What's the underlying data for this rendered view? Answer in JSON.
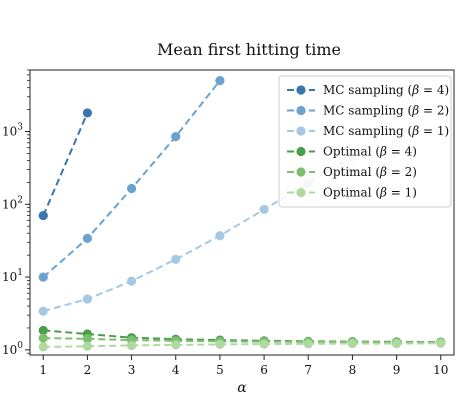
{
  "chart_data": {
    "type": "line",
    "title": "Mean first hitting time",
    "xlabel": "α",
    "ylabel": "",
    "x": [
      1,
      2,
      3,
      4,
      5,
      6,
      7,
      8,
      9,
      10
    ],
    "xlim": [
      0.7,
      10.3
    ],
    "ylim": [
      0.85,
      7000
    ],
    "yscale": "log",
    "y_ticks": [
      1,
      10,
      100,
      1000
    ],
    "y_tick_labels": [
      "10",
      "10",
      "10",
      "10"
    ],
    "y_tick_exponents": [
      "0",
      "1",
      "2",
      "3"
    ],
    "x_tick_labels": [
      "1",
      "2",
      "3",
      "4",
      "5",
      "6",
      "7",
      "8",
      "9",
      "10"
    ],
    "legend_position": "top-right",
    "grid": false,
    "series": [
      {
        "name": "MC sampling (β = 4)",
        "label_prefix": "MC sampling (",
        "beta": "β",
        "label_suffix": " = 4)",
        "color": "#3b75af",
        "x": [
          1,
          2
        ],
        "values": [
          70,
          1800
        ]
      },
      {
        "name": "MC sampling (β = 2)",
        "label_prefix": "MC sampling (",
        "beta": "β",
        "label_suffix": " = 2)",
        "color": "#6aa3cf",
        "x": [
          1,
          2,
          3,
          4,
          5
        ],
        "values": [
          10,
          34,
          165,
          850,
          5000
        ]
      },
      {
        "name": "MC sampling (β = 1)",
        "label_prefix": "MC sampling (",
        "beta": "β",
        "label_suffix": " = 1)",
        "color": "#a6c8e2",
        "x": [
          1,
          2,
          3,
          4,
          5,
          6,
          7,
          8
        ],
        "values": [
          3.4,
          5.0,
          8.8,
          17.5,
          37,
          85,
          195,
          450
        ]
      },
      {
        "name": "Optimal (β = 4)",
        "label_prefix": "Optimal (",
        "beta": "β",
        "label_suffix": " = 4)",
        "color": "#4a9e4a",
        "x": [
          1,
          2,
          3,
          4,
          5,
          6,
          7,
          8,
          9,
          10
        ],
        "values": [
          1.85,
          1.65,
          1.47,
          1.4,
          1.36,
          1.33,
          1.31,
          1.3,
          1.29,
          1.28
        ]
      },
      {
        "name": "Optimal (β = 2)",
        "label_prefix": "Optimal (",
        "beta": "β",
        "label_suffix": " = 2)",
        "color": "#7cbf6f",
        "x": [
          1,
          2,
          3,
          4,
          5,
          6,
          7,
          8,
          9,
          10
        ],
        "values": [
          1.45,
          1.42,
          1.36,
          1.33,
          1.31,
          1.3,
          1.29,
          1.28,
          1.27,
          1.27
        ]
      },
      {
        "name": "Optimal (β = 1)",
        "label_prefix": "Optimal (",
        "beta": "β",
        "label_suffix": " = 1)",
        "color": "#afd9a1",
        "x": [
          1,
          2,
          3,
          4,
          5,
          6,
          7,
          8,
          9,
          10
        ],
        "values": [
          1.1,
          1.12,
          1.15,
          1.17,
          1.19,
          1.2,
          1.21,
          1.22,
          1.22,
          1.23
        ]
      }
    ]
  }
}
